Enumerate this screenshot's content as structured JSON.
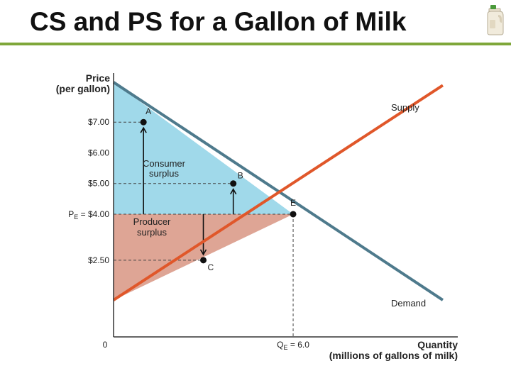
{
  "slide": {
    "title": "CS and PS for a Gallon of Milk",
    "icon": "milk-jug-icon"
  },
  "chart_data": {
    "type": "line",
    "title": "",
    "ylabel_line1": "Price",
    "ylabel_line2": "(per gallon)",
    "xlabel_line1": "Quantity",
    "xlabel_line2": "(millions of gallons of milk)",
    "origin_label": "0",
    "xlim": [
      0,
      11.5
    ],
    "ylim": [
      0,
      8.6
    ],
    "y_ticks": [
      {
        "value": 7.0,
        "label": "$7.00"
      },
      {
        "value": 6.0,
        "label": "$6.00"
      },
      {
        "value": 5.0,
        "label": "$5.00"
      },
      {
        "value": 4.0,
        "label_main": "P",
        "label_sub": "E",
        "label_rest": " = $4.00"
      },
      {
        "value": 2.5,
        "label": "$2.50"
      }
    ],
    "x_ticks": [
      {
        "value": 6.0,
        "label_main": "Q",
        "label_sub": "E",
        "label_rest": " = 6.0"
      }
    ],
    "series": [
      {
        "name": "Demand",
        "color": "#4e7a8c",
        "x": [
          0,
          11
        ],
        "y": [
          8.3,
          1.2
        ]
      },
      {
        "name": "Supply",
        "color": "#e0572a",
        "x": [
          0,
          11
        ],
        "y": [
          1.2,
          8.2
        ]
      }
    ],
    "points": [
      {
        "label": "A",
        "x": 1.0,
        "y": 7.0
      },
      {
        "label": "B",
        "x": 4.0,
        "y": 5.0
      },
      {
        "label": "E",
        "x": 6.0,
        "y": 4.0
      },
      {
        "label": "C",
        "x": 3.0,
        "y": 2.5
      }
    ],
    "regions": [
      {
        "name": "Consumer surplus",
        "line1": "Consumer",
        "line2": "surplus",
        "color": "#a0d9ea"
      },
      {
        "name": "Producer surplus",
        "line1": "Producer",
        "line2": "surplus",
        "color": "#dea595"
      }
    ],
    "colors": {
      "axis": "#333333",
      "demand": "#4e7a8c",
      "supply": "#e0572a",
      "cs_fill": "#a0d9ea",
      "ps_fill": "#dea595",
      "accent": "#7fa73a"
    }
  }
}
